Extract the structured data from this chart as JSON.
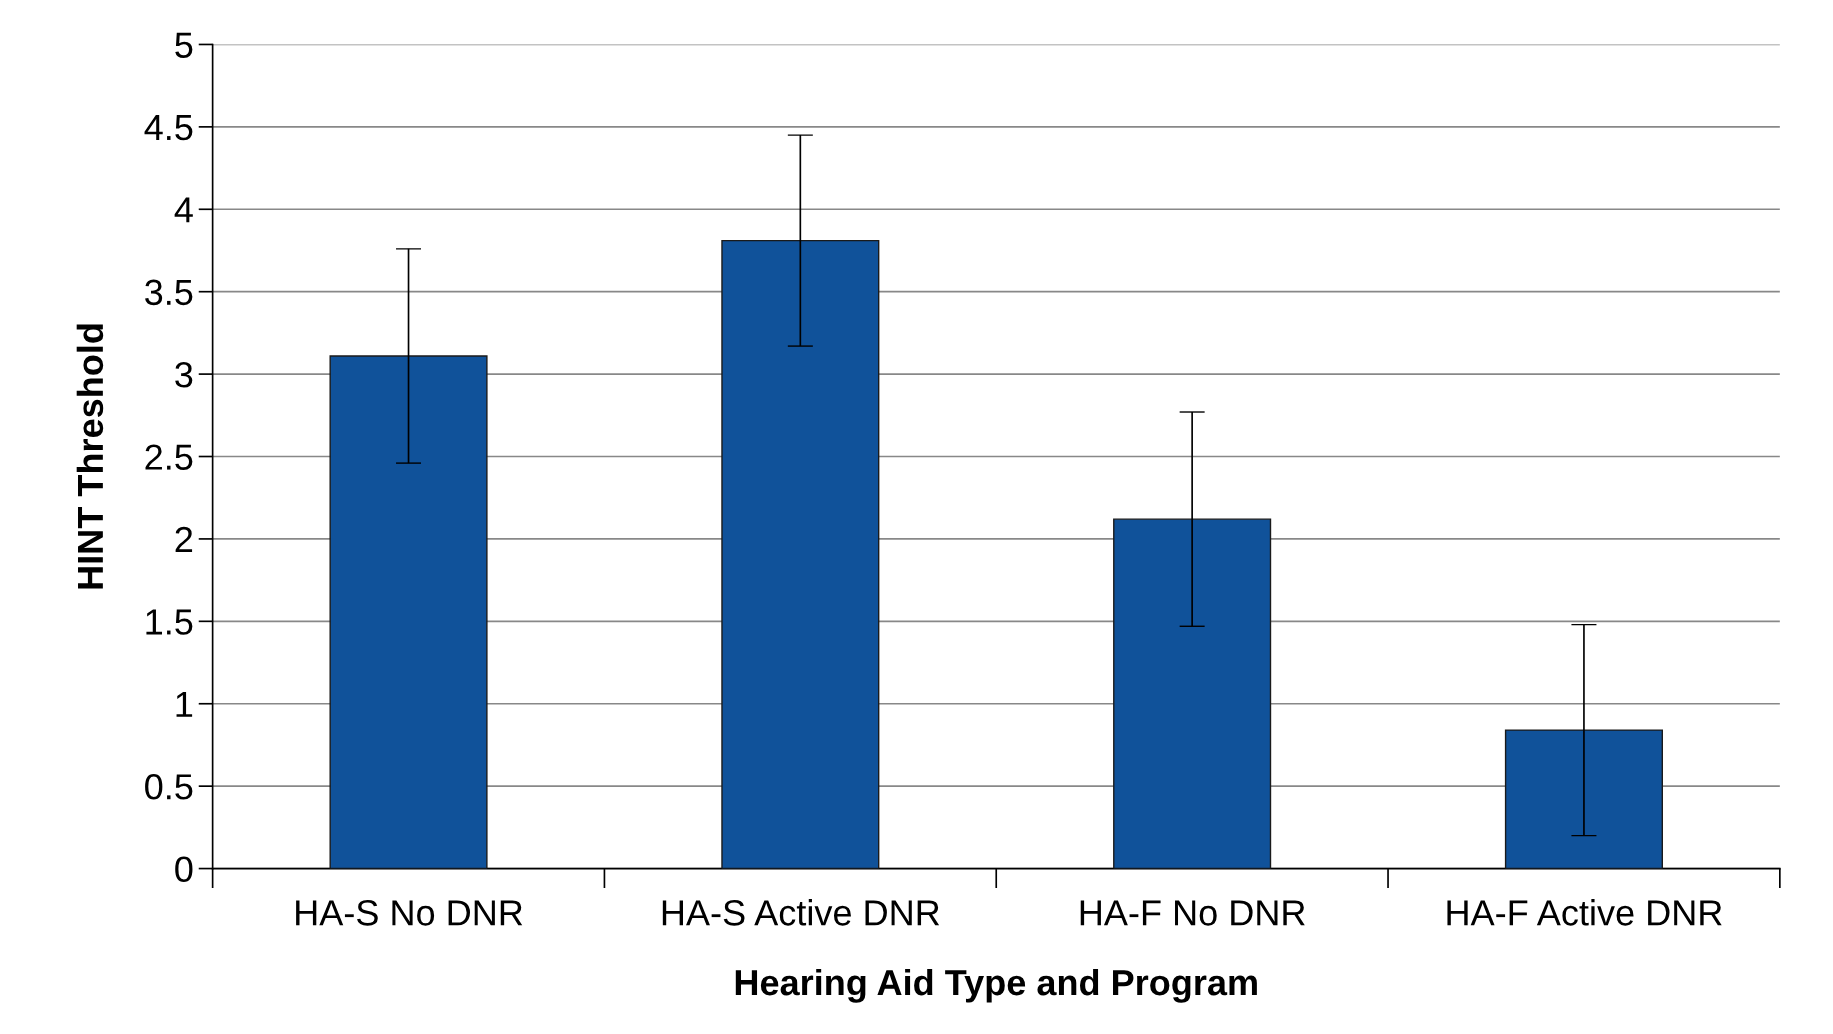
{
  "chart_data": {
    "type": "bar",
    "xlabel": "Hearing Aid Type and Program",
    "ylabel": "HINT Threshold",
    "categories": [
      "HA-S No DNR",
      "HA-S Active DNR",
      "HA-F No DNR",
      "HA-F Active DNR"
    ],
    "series": [
      {
        "color": "#10529a",
        "values": [
          3.11,
          3.81,
          2.12,
          0.84
        ],
        "errors": [
          0.65,
          0.64,
          0.65,
          0.64
        ]
      }
    ],
    "ylim": [
      0,
      5
    ],
    "yticks": [
      0,
      0.5,
      1,
      1.5,
      2,
      2.5,
      3,
      3.5,
      4,
      4.5,
      5
    ],
    "grid": "y",
    "legend": false
  }
}
